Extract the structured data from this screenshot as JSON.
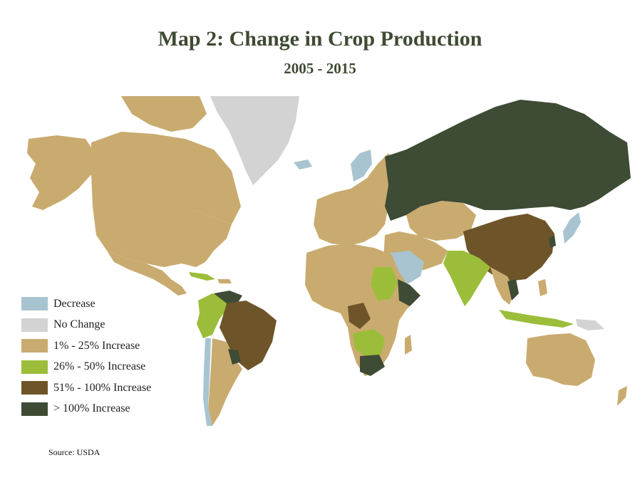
{
  "title": "Map 2: Change in Crop Production",
  "subtitle": "2005 - 2015",
  "source": "Source: USDA",
  "legend": [
    {
      "key": "decrease",
      "label": "Decrease",
      "color": "#a9c4d1"
    },
    {
      "key": "nochange",
      "label": "No Change",
      "color": "#d3d3d3"
    },
    {
      "key": "inc1",
      "label": "1% - 25% Increase",
      "color": "#c9ab6f"
    },
    {
      "key": "inc2",
      "label": "26% - 50% Increase",
      "color": "#9cbd3a"
    },
    {
      "key": "inc3",
      "label": "51% - 100% Increase",
      "color": "#6e5529"
    },
    {
      "key": "inc4",
      "label": "> 100% Increase",
      "color": "#3e4b35"
    }
  ]
}
